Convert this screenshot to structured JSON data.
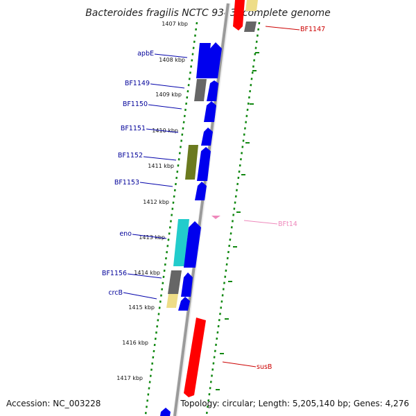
{
  "title": "Bacteroides fragilis NCTC 9343, complete genome",
  "footer": {
    "accession": "Accession: NC_003228",
    "summary": "Topology: circular; Length: 5,205,140 bp; Genes: 4,276"
  },
  "ticks": [
    "1407 kbp",
    "1408 kbp",
    "1409 kbp",
    "1410 kbp",
    "1411 kbp",
    "1412 kbp",
    "1413 kbp",
    "1414 kbp",
    "1415 kbp",
    "1416 kbp",
    "1417 kbp"
  ],
  "labels": {
    "BF1147": "BF1147",
    "apbE": "apbE",
    "BF1149": "BF1149",
    "BF1150": "BF1150",
    "BF1151": "BF1151",
    "BF1152": "BF1152",
    "BF1153": "BF1153",
    "BFt14": "BFt14",
    "eno": "eno",
    "BF1156": "BF1156",
    "crcB": "crcB",
    "susB": "susB"
  },
  "colors": {
    "cds": "#0000ee",
    "highlight": "#ff0000",
    "backbone": "#999999",
    "dotted": "#118811",
    "label_left": "#000099",
    "label_red": "#cc0000",
    "label_pink": "#ee88bb",
    "olive": "#6b7a1f",
    "cyan": "#22cccc",
    "grey": "#666666",
    "khaki": "#eedd88"
  }
}
